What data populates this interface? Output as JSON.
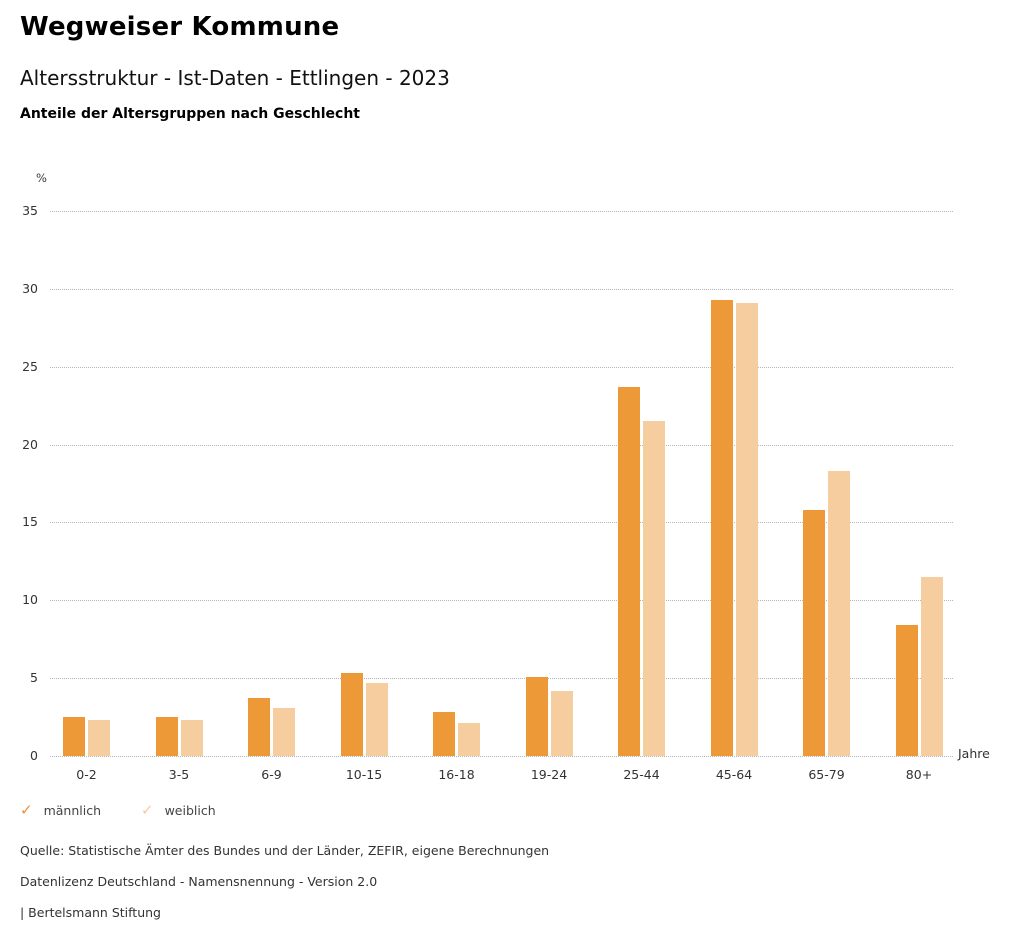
{
  "header": {
    "title": "Wegweiser Kommune",
    "subtitle": "Altersstruktur - Ist-Daten - Ettlingen - 2023",
    "heading": "Anteile der Altersgruppen nach Geschlecht"
  },
  "chart_data": {
    "type": "bar",
    "title": "Anteile der Altersgruppen nach Geschlecht",
    "categories": [
      "0-2",
      "3-5",
      "6-9",
      "10-15",
      "16-18",
      "19-24",
      "25-44",
      "45-64",
      "65-79",
      "80+"
    ],
    "series": [
      {
        "name": "männlich",
        "color": "#ED9937",
        "values": [
          2.5,
          2.5,
          3.7,
          5.3,
          2.8,
          5.1,
          23.7,
          29.3,
          15.8,
          8.4
        ]
      },
      {
        "name": "weiblich",
        "color": "#F5CD9E",
        "values": [
          2.3,
          2.3,
          3.1,
          4.7,
          2.1,
          4.2,
          21.5,
          29.1,
          18.3,
          11.5
        ]
      }
    ],
    "y_unit": "%",
    "x_unit": "Jahre",
    "ylim": [
      0,
      35
    ],
    "yticks": [
      35,
      30,
      25,
      20,
      15,
      10,
      5,
      0
    ],
    "grid": true,
    "gridline_color": "#b5b5b5",
    "legend_position": "bottom-left"
  },
  "legend": {
    "check_icon": "✓",
    "items": [
      {
        "label": "männlich",
        "color": "#E8923B"
      },
      {
        "label": "weiblich",
        "color": "#F3CD9E"
      }
    ]
  },
  "footer": {
    "lines": [
      "Quelle: Statistische Ämter des Bundes und der Länder, ZEFIR, eigene Berechnungen",
      "Datenlizenz Deutschland - Namensnennung - Version 2.0",
      "| Bertelsmann Stiftung"
    ]
  }
}
